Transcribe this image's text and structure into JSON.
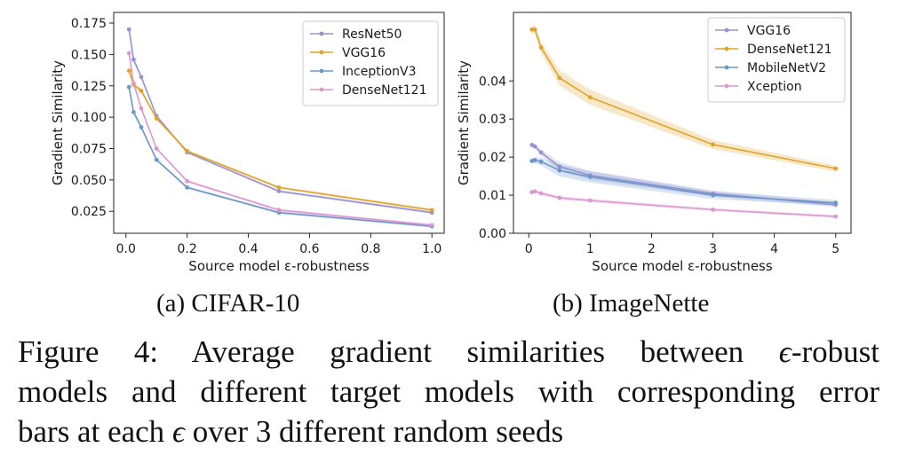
{
  "chart_data": [
    {
      "id": "cifar",
      "type": "line",
      "subcaption": "(a) CIFAR-10",
      "xlabel": "Source model ε-robustness",
      "ylabel": "Gradient Similarity",
      "xlim": [
        -0.04,
        1.04
      ],
      "ylim": [
        0.0075,
        0.1835
      ],
      "xticks": [
        0.0,
        0.2,
        0.4,
        0.6,
        0.8,
        1.0
      ],
      "xtick_labels": [
        "0.0",
        "0.2",
        "0.4",
        "0.6",
        "0.8",
        "1.0"
      ],
      "yticks": [
        0.025,
        0.05,
        0.075,
        0.1,
        0.125,
        0.15,
        0.175
      ],
      "ytick_labels": [
        "0.025",
        "0.050",
        "0.075",
        "0.100",
        "0.125",
        "0.150",
        "0.175"
      ],
      "legend_position": "top-right",
      "x": [
        0.01,
        0.025,
        0.05,
        0.1,
        0.2,
        0.5,
        1.0
      ],
      "series": [
        {
          "name": "ResNet50",
          "color": "#9a91d4",
          "values": [
            0.17,
            0.146,
            0.132,
            0.101,
            0.072,
            0.041,
            0.024
          ],
          "err": [
            0.003,
            0.002,
            0.002,
            0.001,
            0.001,
            0.001,
            0.001
          ]
        },
        {
          "name": "VGG16",
          "color": "#e0a42a",
          "values": [
            0.137,
            0.126,
            0.121,
            0.099,
            0.073,
            0.044,
            0.026
          ],
          "err": [
            0.003,
            0.002,
            0.002,
            0.001,
            0.001,
            0.001,
            0.001
          ]
        },
        {
          "name": "InceptionV3",
          "color": "#6c98c8",
          "values": [
            0.124,
            0.104,
            0.092,
            0.066,
            0.044,
            0.024,
            0.013
          ],
          "err": [
            0.003,
            0.002,
            0.002,
            0.001,
            0.001,
            0.001,
            0.001
          ]
        },
        {
          "name": "DenseNet121",
          "color": "#dc97d2",
          "values": [
            0.151,
            0.127,
            0.107,
            0.075,
            0.049,
            0.026,
            0.014
          ],
          "err": [
            0.003,
            0.002,
            0.002,
            0.001,
            0.001,
            0.001,
            0.001
          ]
        }
      ]
    },
    {
      "id": "imagenette",
      "type": "line",
      "subcaption": "(b) ImageNette",
      "xlabel": "Source model ε-robustness",
      "ylabel": "Gradient Similarity",
      "xlim": [
        -0.25,
        5.25
      ],
      "ylim": [
        0.0,
        0.058
      ],
      "xticks": [
        0,
        1,
        2,
        3,
        4,
        5
      ],
      "xtick_labels": [
        "0",
        "1",
        "2",
        "3",
        "4",
        "5"
      ],
      "yticks": [
        0.0,
        0.01,
        0.02,
        0.03,
        0.04
      ],
      "ytick_labels": [
        "0.00",
        "0.01",
        "0.02",
        "0.03",
        "0.04"
      ],
      "legend_position": "top-right",
      "x": [
        0.05,
        0.1,
        0.2,
        0.5,
        1.0,
        3.0,
        5.0
      ],
      "series": [
        {
          "name": "VGG16",
          "color": "#9a91d4",
          "values": [
            0.0232,
            0.0228,
            0.0212,
            0.0175,
            0.0152,
            0.0104,
            0.0075
          ],
          "err": [
            0.0004,
            0.0005,
            0.0008,
            0.0012,
            0.0012,
            0.0008,
            0.0006
          ]
        },
        {
          "name": "DenseNet121",
          "color": "#e0a42a",
          "values": [
            0.0535,
            0.0535,
            0.0488,
            0.0408,
            0.0357,
            0.0233,
            0.017
          ],
          "err": [
            0.001,
            0.0012,
            0.0015,
            0.002,
            0.002,
            0.0012,
            0.0008
          ]
        },
        {
          "name": "MobileNetV2",
          "color": "#6c98c8",
          "values": [
            0.019,
            0.0192,
            0.0188,
            0.0165,
            0.0148,
            0.01,
            0.008
          ],
          "err": [
            0.0006,
            0.0008,
            0.001,
            0.0016,
            0.0015,
            0.001,
            0.0008
          ]
        },
        {
          "name": "Xception",
          "color": "#dc97d2",
          "values": [
            0.0108,
            0.011,
            0.0105,
            0.0093,
            0.0086,
            0.0062,
            0.0044
          ],
          "err": [
            0.0003,
            0.0003,
            0.0004,
            0.0005,
            0.0005,
            0.0004,
            0.0004
          ]
        }
      ]
    }
  ],
  "caption": {
    "lines": [
      [
        "Figure 4: Average gradient similarities between ",
        "ϵ",
        "-robust"
      ],
      [
        "models and different target models with corresponding error"
      ],
      [
        "bars at each ",
        "ϵ",
        " over 3 different random seeds"
      ]
    ]
  }
}
